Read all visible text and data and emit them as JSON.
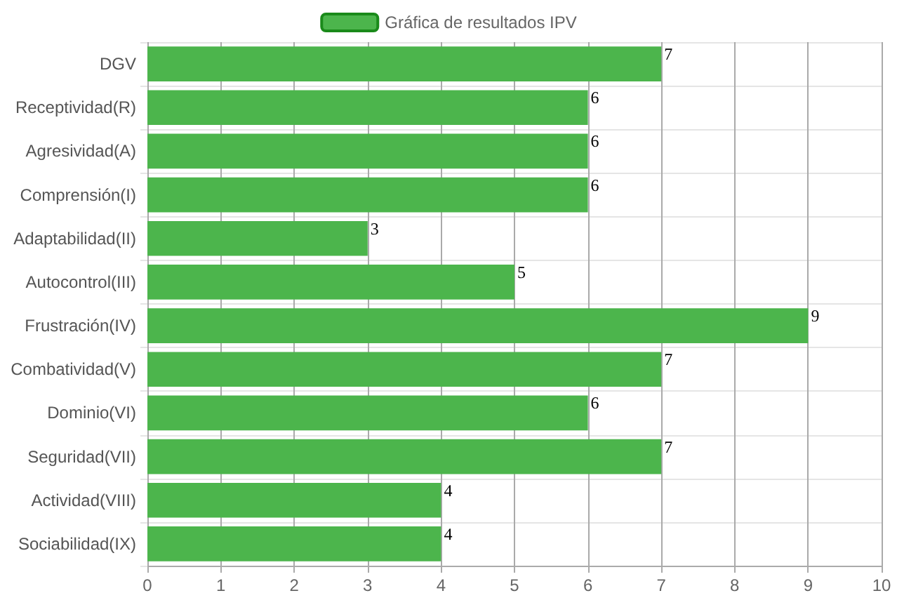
{
  "chart_data": {
    "type": "bar",
    "orientation": "horizontal",
    "categories": [
      "DGV",
      "Receptividad(R)",
      "Agresividad(A)",
      "Comprensión(I)",
      "Adaptabilidad(II)",
      "Autocontrol(III)",
      "Frustración(IV)",
      "Combatividad(V)",
      "Dominio(VI)",
      "Seguridad(VII)",
      "Actividad(VIII)",
      "Sociabilidad(IX)"
    ],
    "series": [
      {
        "name": "Gráfica de resultados IPV",
        "color": "#4cb54c",
        "values": [
          7,
          6,
          6,
          6,
          3,
          5,
          9,
          7,
          6,
          7,
          4,
          4
        ]
      }
    ],
    "xlim": [
      0,
      10
    ],
    "xticks": [
      0,
      1,
      2,
      3,
      4,
      5,
      6,
      7,
      8,
      9,
      10
    ],
    "grid": true,
    "legend": "top",
    "data_labels": true
  }
}
